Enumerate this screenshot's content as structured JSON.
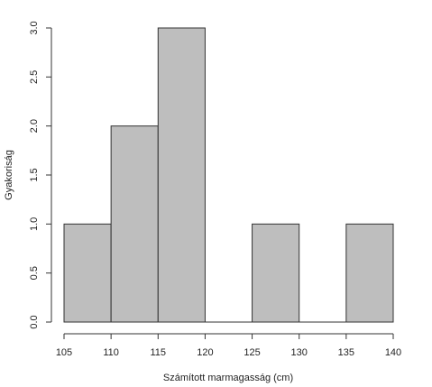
{
  "chart_data": {
    "type": "bar",
    "subtype": "histogram",
    "title": "",
    "xlabel": "Számított marmagasság (cm)",
    "ylabel": "Gyakoriság",
    "bins": [
      {
        "x0": 105,
        "x1": 110,
        "count": 1
      },
      {
        "x0": 110,
        "x1": 115,
        "count": 2
      },
      {
        "x0": 115,
        "x1": 120,
        "count": 3
      },
      {
        "x0": 120,
        "x1": 125,
        "count": 0
      },
      {
        "x0": 125,
        "x1": 130,
        "count": 1
      },
      {
        "x0": 130,
        "x1": 135,
        "count": 0
      },
      {
        "x0": 135,
        "x1": 140,
        "count": 1
      }
    ],
    "xticks": [
      105,
      110,
      115,
      120,
      125,
      130,
      135,
      140
    ],
    "xtick_labels": [
      "105",
      "110",
      "115",
      "120",
      "125",
      "130",
      "135",
      "140"
    ],
    "yticks": [
      0,
      0.5,
      1,
      1.5,
      2,
      2.5,
      3
    ],
    "ytick_labels": [
      "0.0",
      "0.5",
      "1.0",
      "1.5",
      "2.0",
      "2.5",
      "3.0"
    ],
    "xlim": [
      105,
      140
    ],
    "ylim": [
      0,
      3
    ],
    "grid": false,
    "legend": "none",
    "bar_color": "#bebebe",
    "edge_color": "#333333"
  }
}
